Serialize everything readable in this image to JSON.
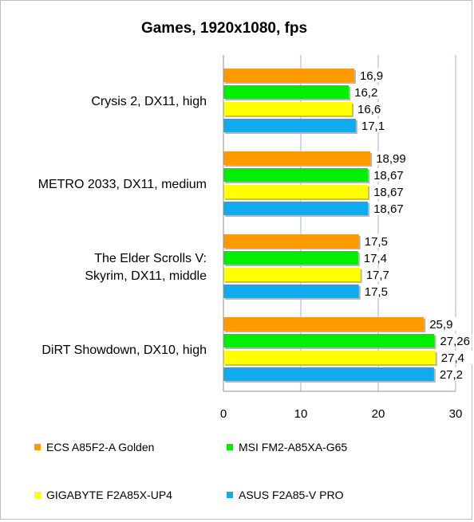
{
  "chart_data": {
    "type": "bar",
    "orientation": "horizontal",
    "title": "Games, 1920x1080, fps",
    "categories": [
      [
        "Crysis 2, DX11, high"
      ],
      [
        "METRO 2033, DX11, medium"
      ],
      [
        "The Elder Scrolls V:",
        "Skyrim, DX11, middle"
      ],
      [
        "DiRT Showdown, DX10, high"
      ]
    ],
    "series": [
      {
        "name": "ECS A85F2-A Golden",
        "color": "#ff9900",
        "values": [
          16.9,
          18.99,
          17.5,
          25.9
        ],
        "labels": [
          "16,9",
          "18,99",
          "17,5",
          "25,9"
        ]
      },
      {
        "name": "MSI FM2-A85XA-G65",
        "color": "#00ee00",
        "values": [
          16.2,
          18.67,
          17.4,
          27.26
        ],
        "labels": [
          "16,2",
          "18,67",
          "17,4",
          "27,26"
        ]
      },
      {
        "name": "GIGABYTE F2A85X-UP4",
        "color": "#ffff00",
        "values": [
          16.6,
          18.67,
          17.7,
          27.4
        ],
        "labels": [
          "16,6",
          "18,67",
          "17,7",
          "27,4"
        ]
      },
      {
        "name": "ASUS F2A85-V PRO",
        "color": "#10aaee",
        "values": [
          17.1,
          18.67,
          17.5,
          27.2
        ],
        "labels": [
          "17,1",
          "18,67",
          "17,5",
          "27,2"
        ]
      }
    ],
    "xlim": [
      0,
      30
    ],
    "xticks": [
      "0",
      "10",
      "20",
      "30"
    ],
    "grid": true,
    "legend_position": "bottom"
  }
}
